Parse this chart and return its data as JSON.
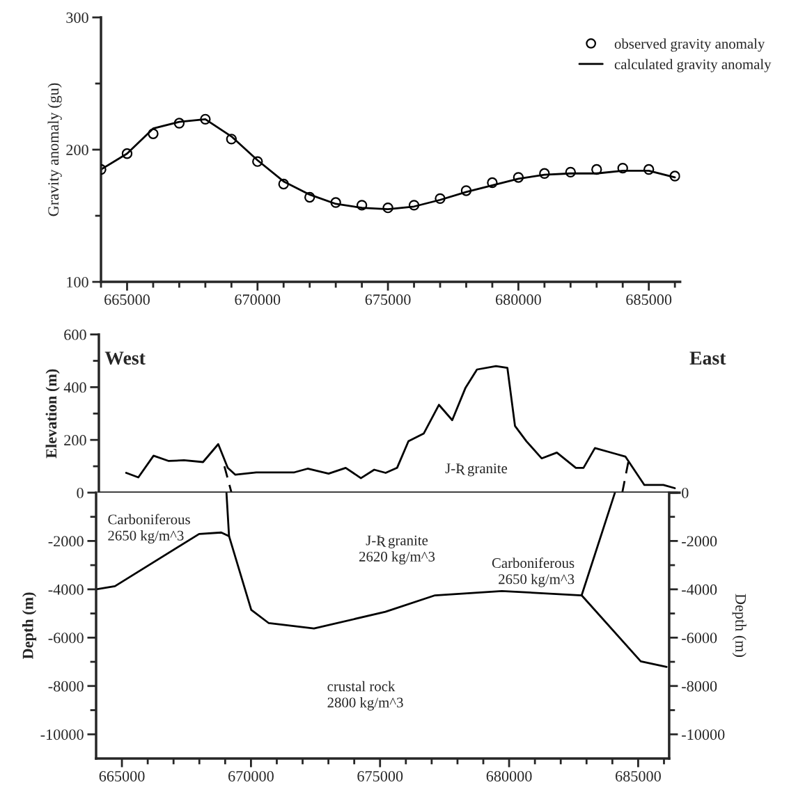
{
  "chart_data": [
    {
      "type": "line",
      "ylabel": "Gravity anomaly (gu)",
      "xlim": [
        664000,
        686200
      ],
      "ylim": [
        100,
        300
      ],
      "xticks": [
        665000,
        670000,
        675000,
        680000,
        685000,
        {
          "value": 664000,
          "label": null
        },
        {
          "value": 666000,
          "label": null
        },
        {
          "value": 667000,
          "label": null
        },
        {
          "value": 668000,
          "label": null
        },
        {
          "value": 669000,
          "label": null
        },
        {
          "value": 671000,
          "label": null
        },
        {
          "value": 672000,
          "label": null
        },
        {
          "value": 673000,
          "label": null
        },
        {
          "value": 674000,
          "label": null
        },
        {
          "value": 676000,
          "label": null
        },
        {
          "value": 677000,
          "label": null
        },
        {
          "value": 678000,
          "label": null
        },
        {
          "value": 679000,
          "label": null
        },
        {
          "value": 681000,
          "label": null
        },
        {
          "value": 682000,
          "label": null
        },
        {
          "value": 683000,
          "label": null
        },
        {
          "value": 684000,
          "label": null
        },
        {
          "value": 686000,
          "label": null
        }
      ],
      "yticks": [
        100,
        200,
        300,
        {
          "value": 150,
          "label": null
        },
        {
          "value": 250,
          "label": null
        }
      ],
      "legend": "top right",
      "series": [
        {
          "name": "observed gravity anomaly",
          "type": "scatter",
          "marker": "circle",
          "color": "#000000",
          "x": [
            664000,
            665000,
            666000,
            667000,
            668000,
            669000,
            670000,
            671000,
            672000,
            673000,
            674000,
            675000,
            676000,
            677000,
            678000,
            679000,
            680000,
            681000,
            682000,
            683000,
            684000,
            685000,
            686000
          ],
          "values": [
            185,
            197,
            212,
            220,
            223,
            208,
            191,
            174,
            164,
            160,
            158,
            156,
            158,
            163,
            169,
            175,
            179,
            182,
            183,
            185,
            186,
            185,
            180
          ]
        },
        {
          "name": "calculated gravity anomaly",
          "type": "line",
          "color": "#000000",
          "x": [
            664000,
            665000,
            666000,
            667000,
            668000,
            669000,
            670000,
            671000,
            672000,
            673000,
            674000,
            675000,
            676000,
            677000,
            678000,
            679000,
            680000,
            681000,
            682000,
            683000,
            684000,
            685000,
            686000
          ],
          "values": [
            185,
            197,
            216,
            221,
            223,
            210,
            192,
            176,
            166,
            159,
            156,
            155,
            157,
            162,
            168,
            173,
            178,
            181,
            182,
            182,
            184,
            184,
            179
          ]
        }
      ]
    },
    {
      "type": "line",
      "ylabel": "Elevation (m)",
      "xlim": [
        664000,
        686200
      ],
      "ylim": [
        0,
        600
      ],
      "xticks": [
        665000,
        670000,
        675000,
        680000,
        685000
      ],
      "yticks": [
        200,
        400,
        600,
        {
          "value": 100,
          "label": null
        },
        {
          "value": 300,
          "label": null
        },
        {
          "value": 500,
          "label": null
        }
      ],
      "tick_labels": "y",
      "annotations": [
        "West",
        "East",
        "J-Ʀ granite"
      ],
      "series": [
        {
          "color": "#000000",
          "x": [
            665044,
            665509,
            666091,
            666673,
            667255,
            667982,
            668564,
            668927,
            669218,
            670018,
            671473,
            671982,
            672782,
            673436,
            674018,
            674527,
            674964,
            675400,
            675836,
            676418,
            677000,
            677509,
            678018,
            678455,
            679182,
            679618,
            679909,
            680345,
            680927,
            681509,
            682236,
            682527,
            682964,
            683691,
            684127,
            684855,
            685582,
            686018
          ],
          "values": [
            75,
            58,
            140,
            120,
            123,
            116,
            184,
            94,
            68,
            77,
            77,
            91,
            72,
            94,
            55,
            87,
            75,
            94,
            195,
            224,
            333,
            275,
            398,
            467,
            480,
            473,
            253,
            195,
            130,
            152,
            94,
            94,
            169,
            149,
            137,
            29,
            29,
            17
          ]
        },
        {
          "color": "#000000",
          "line_style": "dashed",
          "x": [
            668800,
            669070
          ],
          "values": [
            100,
            0
          ]
        },
        {
          "color": "#000000",
          "line_style": "dashed",
          "x": [
            684240,
            684010
          ],
          "values": [
            116,
            0
          ]
        }
      ]
    },
    {
      "type": "line",
      "ylabel": "Depth (m)",
      "y2label": "Depth (m)",
      "xlim": [
        664000,
        686200
      ],
      "ylim": [
        -11000,
        0
      ],
      "y2lim": [
        -11000,
        0
      ],
      "xticks": [
        665000,
        670000,
        675000,
        680000,
        685000,
        {
          "value": 666000,
          "label": null
        },
        {
          "value": 667000,
          "label": null
        },
        {
          "value": 668000,
          "label": null
        },
        {
          "value": 669000,
          "label": null
        },
        {
          "value": 671000,
          "label": null
        },
        {
          "value": 672000,
          "label": null
        },
        {
          "value": 673000,
          "label": null
        },
        {
          "value": 674000,
          "label": null
        },
        {
          "value": 676000,
          "label": null
        },
        {
          "value": 677000,
          "label": null
        },
        {
          "value": 678000,
          "label": null
        },
        {
          "value": 679000,
          "label": null
        },
        {
          "value": 681000,
          "label": null
        },
        {
          "value": 682000,
          "label": null
        },
        {
          "value": 683000,
          "label": null
        },
        {
          "value": 684000,
          "label": null
        },
        {
          "value": 686000,
          "label": null
        }
      ],
      "yticks": [
        0,
        -2000,
        -4000,
        -6000,
        -8000,
        -10000,
        {
          "value": -1000,
          "label": null
        },
        {
          "value": -3000,
          "label": null
        },
        {
          "value": -5000,
          "label": null
        },
        {
          "value": -7000,
          "label": null
        },
        {
          "value": -9000,
          "label": null
        }
      ],
      "y2ticks": [
        0,
        -2000,
        -4000,
        -6000,
        -8000,
        -10000,
        {
          "value": -1000,
          "label": null
        },
        {
          "value": -3000,
          "label": null
        },
        {
          "value": -5000,
          "label": null
        },
        {
          "value": -7000,
          "label": null
        },
        {
          "value": -9000,
          "label": null
        }
      ],
      "annotations": [
        "Carboniferous\n2650 kg/m^3",
        "J-Ʀ granite\n2620 kg/m^3",
        "Carboniferous\n2650 kg/m^3",
        "crustal rock\n2800 kg/m^3"
      ],
      "series": [
        {
          "color": "#000000",
          "x": [
            664000,
            664730,
            667990,
            668850,
            669150
          ],
          "values": [
            -4000,
            -3870,
            -1710,
            -1650,
            -1800
          ]
        },
        {
          "color": "#000000",
          "x": [
            669050,
            669150,
            670010,
            670690,
            672440,
            675210,
            677130,
            679720,
            682810,
            684100
          ],
          "values": [
            0,
            -1800,
            -4850,
            -5400,
            -5620,
            -4930,
            -4250,
            -4070,
            -4250,
            0
          ]
        },
        {
          "color": "#000000",
          "x": [
            682810,
            685100,
            686100
          ],
          "values": [
            -4250,
            -6980,
            -7210
          ]
        }
      ]
    }
  ]
}
